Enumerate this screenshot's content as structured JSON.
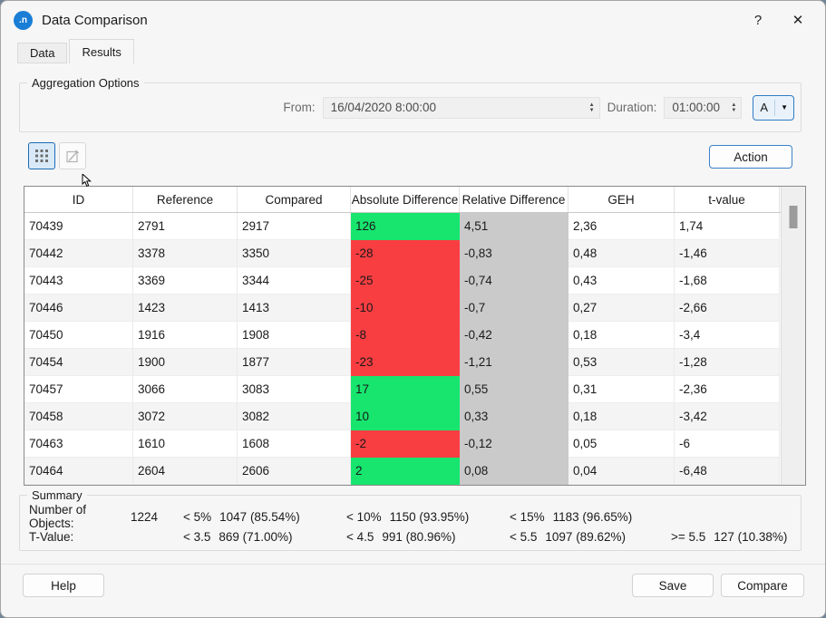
{
  "window": {
    "title": "Data Comparison",
    "icon_text": ".n",
    "help_symbol": "?",
    "close_symbol": "✕"
  },
  "tabs": {
    "data_label": "Data",
    "results_label": "Results"
  },
  "aggregation": {
    "group_label": "Aggregation Options",
    "from_label": "From:",
    "from_value": "16/04/2020 8:00:00",
    "duration_label": "Duration:",
    "duration_value": "01:00:00",
    "mode_label": "A",
    "spinner_up": "▲",
    "spinner_down": "▼",
    "dropdown_arrow": "▼"
  },
  "toolbar": {
    "action_label": "Action"
  },
  "table": {
    "columns": [
      "ID",
      "Reference",
      "Compared",
      "Absolute Difference",
      "Relative Difference",
      "GEH",
      "t-value"
    ],
    "rows": [
      {
        "id": "70439",
        "reference": "2791",
        "compared": "2917",
        "abs_diff": "126",
        "rel_diff": "4,51",
        "geh": "2,36",
        "t_value": "1,74"
      },
      {
        "id": "70442",
        "reference": "3378",
        "compared": "3350",
        "abs_diff": "-28",
        "rel_diff": "-0,83",
        "geh": "0,48",
        "t_value": "-1,46"
      },
      {
        "id": "70443",
        "reference": "3369",
        "compared": "3344",
        "abs_diff": "-25",
        "rel_diff": "-0,74",
        "geh": "0,43",
        "t_value": "-1,68"
      },
      {
        "id": "70446",
        "reference": "1423",
        "compared": "1413",
        "abs_diff": "-10",
        "rel_diff": "-0,7",
        "geh": "0,27",
        "t_value": "-2,66"
      },
      {
        "id": "70450",
        "reference": "1916",
        "compared": "1908",
        "abs_diff": "-8",
        "rel_diff": "-0,42",
        "geh": "0,18",
        "t_value": "-3,4"
      },
      {
        "id": "70454",
        "reference": "1900",
        "compared": "1877",
        "abs_diff": "-23",
        "rel_diff": "-1,21",
        "geh": "0,53",
        "t_value": "-1,28"
      },
      {
        "id": "70457",
        "reference": "3066",
        "compared": "3083",
        "abs_diff": "17",
        "rel_diff": "0,55",
        "geh": "0,31",
        "t_value": "-2,36"
      },
      {
        "id": "70458",
        "reference": "3072",
        "compared": "3082",
        "abs_diff": "10",
        "rel_diff": "0,33",
        "geh": "0,18",
        "t_value": "-3,42"
      },
      {
        "id": "70463",
        "reference": "1610",
        "compared": "1608",
        "abs_diff": "-2",
        "rel_diff": "-0,12",
        "geh": "0,05",
        "t_value": "-6"
      },
      {
        "id": "70464",
        "reference": "2604",
        "compared": "2606",
        "abs_diff": "2",
        "rel_diff": "0,08",
        "geh": "0,04",
        "t_value": "-6,48"
      }
    ]
  },
  "summary": {
    "group_label": "Summary",
    "rows": [
      {
        "label": "Number of Objects:",
        "value": "1224",
        "stats": [
          {
            "threshold": "< 5%",
            "value": "1047 (85.54%)"
          },
          {
            "threshold": "< 10%",
            "value": "1150 (93.95%)"
          },
          {
            "threshold": "< 15%",
            "value": "1183 (96.65%)"
          }
        ]
      },
      {
        "label": "T-Value:",
        "value": "",
        "stats": [
          {
            "threshold": "< 3.5",
            "value": "869 (71.00%)"
          },
          {
            "threshold": "< 4.5",
            "value": "991 (80.96%)"
          },
          {
            "threshold": "< 5.5",
            "value": "1097 (89.62%)"
          },
          {
            "threshold": ">= 5.5",
            "value": "127 (10.38%)"
          }
        ]
      }
    ]
  },
  "footer": {
    "help_label": "Help",
    "save_label": "Save",
    "compare_label": "Compare"
  },
  "colors": {
    "positive": "#17e56e",
    "negative": "#f93e42",
    "neutral": "#cacaca",
    "accent": "#0067c0"
  }
}
